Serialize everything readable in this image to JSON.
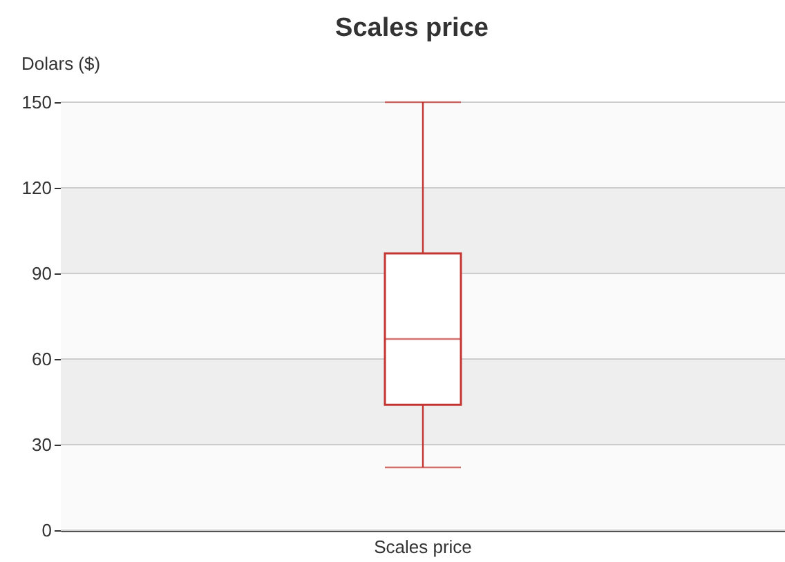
{
  "chart_data": {
    "type": "box",
    "title": "Scales price",
    "ylabel": "Dolars ($)",
    "categories": [
      "Scales price"
    ],
    "series": [
      {
        "color": "#c23531",
        "boxes": [
          {
            "low": 22,
            "q1": 44,
            "median": 67,
            "q3": 97,
            "high": 150
          }
        ]
      }
    ],
    "ylim": [
      0,
      150
    ],
    "yticks": [
      0,
      30,
      60,
      90,
      120,
      150
    ],
    "grid": true
  }
}
